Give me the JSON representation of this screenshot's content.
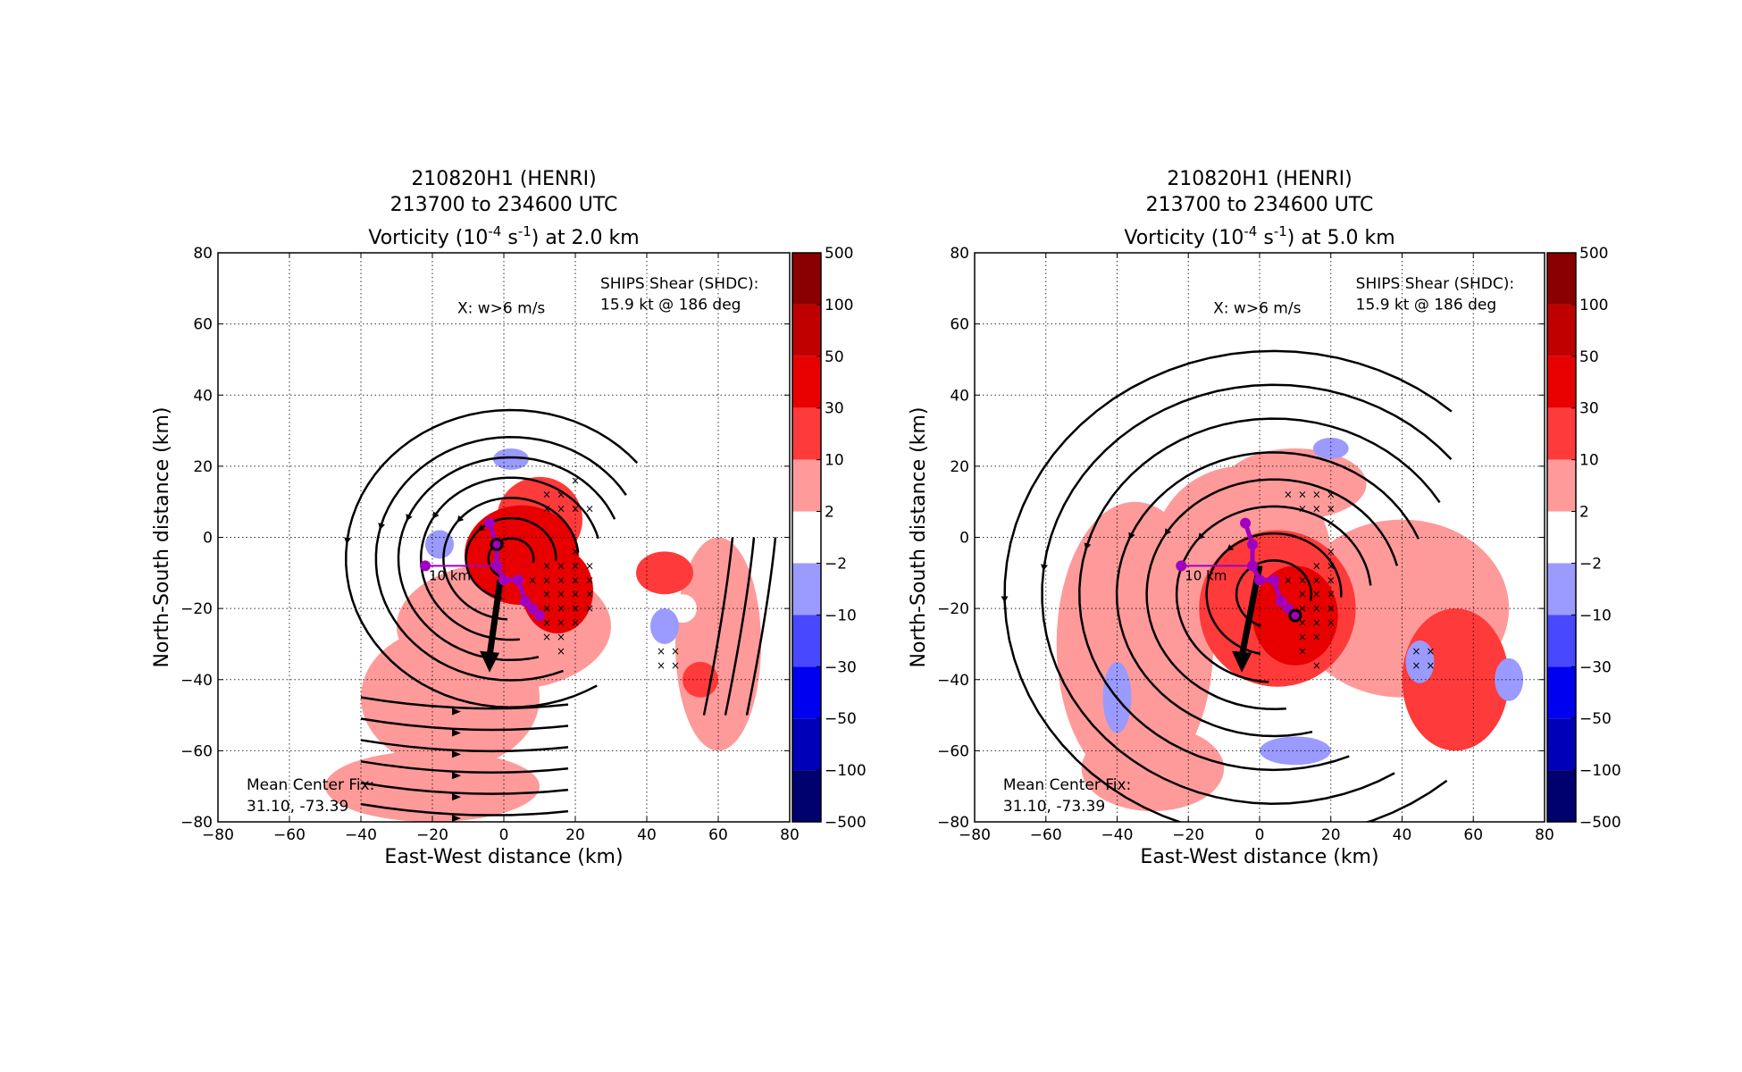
{
  "panels": [
    {
      "title_line1": "210820H1 (HENRI)",
      "title_line2": "213700 to 234600 UTC",
      "title_line3_prefix": "Vorticity (10",
      "title_line3_exp1": "-4",
      "title_line3_mid": " s",
      "title_line3_exp2": "-1",
      "title_line3_suffix": ") at 2.0 km",
      "xlabel": "East-West distance (km)",
      "ylabel": "North-South distance (km)",
      "xticks": [
        "−80",
        "−60",
        "−40",
        "−20",
        "0",
        "20",
        "40",
        "60",
        "80"
      ],
      "yticks": [
        "80",
        "60",
        "40",
        "20",
        "0",
        "−20",
        "−40",
        "−60",
        "−80"
      ],
      "legend_x": "X: w>6 m/s",
      "shear_line1": "SHIPS Shear (SHDC):",
      "shear_line2": "15.9 kt @ 186 deg",
      "center_fix_label": "Mean Center Fix:",
      "center_fix_value": "31.10, -73.39",
      "scale_label": "10 km",
      "colorbar_labels": [
        "500",
        "100",
        "50",
        "30",
        "10",
        "2",
        "−2",
        "−10",
        "−30",
        "−50",
        "−100",
        "−500"
      ]
    },
    {
      "title_line1": "210820H1 (HENRI)",
      "title_line2": "213700 to 234600 UTC",
      "title_line3_prefix": "Vorticity (10",
      "title_line3_exp1": "-4",
      "title_line3_mid": " s",
      "title_line3_exp2": "-1",
      "title_line3_suffix": ") at 5.0 km",
      "xlabel": "East-West distance (km)",
      "ylabel": "North-South distance (km)",
      "xticks": [
        "−80",
        "−60",
        "−40",
        "−20",
        "0",
        "20",
        "40",
        "60",
        "80"
      ],
      "yticks": [
        "80",
        "60",
        "40",
        "20",
        "0",
        "−20",
        "−40",
        "−60",
        "−80"
      ],
      "legend_x": "X: w>6 m/s",
      "shear_line1": "SHIPS Shear (SHDC):",
      "shear_line2": "15.9 kt @ 186 deg",
      "center_fix_label": "Mean Center Fix:",
      "center_fix_value": "31.10, -73.39",
      "scale_label": "10 km",
      "colorbar_labels": [
        "500",
        "100",
        "50",
        "30",
        "10",
        "2",
        "−2",
        "−10",
        "−30",
        "−50",
        "−100",
        "−500"
      ]
    }
  ],
  "chart_data": [
    {
      "type": "heatmap",
      "title": "210820H1 (HENRI) 213700 to 234600 UTC Vorticity (10^-4 s^-1) at 2.0 km",
      "xlabel": "East-West distance (km)",
      "ylabel": "North-South distance (km)",
      "xlim": [
        -80,
        80
      ],
      "ylim": [
        -80,
        80
      ],
      "grid": true,
      "colorbar": {
        "levels": [
          -500,
          -100,
          -50,
          -30,
          -10,
          -2,
          2,
          10,
          30,
          50,
          100,
          500
        ],
        "colors": [
          "#00006e",
          "#0000b8",
          "#0000f0",
          "#4848ff",
          "#9a9aff",
          "#ffffff",
          "#ff9a9a",
          "#ff3a3a",
          "#e80000",
          "#c00000",
          "#8a0000"
        ]
      },
      "vorticity_blobs": [
        {
          "x": 5,
          "y": -5,
          "rx": 16,
          "ry": 14,
          "level": 30
        },
        {
          "x": 15,
          "y": -15,
          "rx": 10,
          "ry": 12,
          "level": 30
        },
        {
          "x": 10,
          "y": 5,
          "rx": 12,
          "ry": 12,
          "level": 10
        },
        {
          "x": 0,
          "y": -25,
          "rx": 30,
          "ry": 18,
          "level": 2
        },
        {
          "x": -15,
          "y": -45,
          "rx": 25,
          "ry": 20,
          "level": 2
        },
        {
          "x": -20,
          "y": -70,
          "rx": 30,
          "ry": 10,
          "level": 2
        },
        {
          "x": 60,
          "y": -30,
          "rx": 12,
          "ry": 30,
          "level": 2
        },
        {
          "x": 45,
          "y": -10,
          "rx": 8,
          "ry": 6,
          "level": 10
        },
        {
          "x": 55,
          "y": -40,
          "rx": 5,
          "ry": 5,
          "level": 10
        },
        {
          "x": 45,
          "y": -25,
          "rx": 4,
          "ry": 5,
          "level": -10
        },
        {
          "x": 2,
          "y": 22,
          "rx": 5,
          "ry": 3,
          "level": -10
        },
        {
          "x": -18,
          "y": -2,
          "rx": 4,
          "ry": 4,
          "level": -10
        },
        {
          "x": 50,
          "y": -20,
          "rx": 4,
          "ry": 4,
          "level": -2
        }
      ],
      "updrafts_w_gt_6": [
        [
          12,
          12
        ],
        [
          16,
          12
        ],
        [
          20,
          16
        ],
        [
          12,
          8
        ],
        [
          16,
          8
        ],
        [
          20,
          8
        ],
        [
          24,
          8
        ],
        [
          20,
          -4
        ],
        [
          12,
          -8
        ],
        [
          16,
          -8
        ],
        [
          20,
          -8
        ],
        [
          24,
          -8
        ],
        [
          8,
          -12
        ],
        [
          12,
          -12
        ],
        [
          16,
          -12
        ],
        [
          20,
          -12
        ],
        [
          24,
          -12
        ],
        [
          12,
          -16
        ],
        [
          16,
          -16
        ],
        [
          20,
          -16
        ],
        [
          24,
          -16
        ],
        [
          12,
          -20
        ],
        [
          16,
          -20
        ],
        [
          20,
          -20
        ],
        [
          24,
          -20
        ],
        [
          12,
          -24
        ],
        [
          16,
          -24
        ],
        [
          20,
          -24
        ],
        [
          12,
          -28
        ],
        [
          16,
          -28
        ],
        [
          16,
          -32
        ],
        [
          44,
          -32
        ],
        [
          48,
          -32
        ],
        [
          44,
          -36
        ],
        [
          48,
          -36
        ]
      ],
      "center_fixes": [
        [
          -4,
          4
        ],
        [
          -2,
          -2
        ],
        [
          -2,
          -8
        ],
        [
          0,
          -12
        ],
        [
          4,
          -12
        ],
        [
          6,
          -18
        ],
        [
          8,
          -20
        ],
        [
          10,
          -22
        ],
        [
          -22,
          -8
        ]
      ],
      "shear_vector": {
        "from": [
          -1,
          -12
        ],
        "to": [
          -4,
          -38
        ]
      },
      "shear_kt": 15.9,
      "shear_deg": 186,
      "mean_center_fix": [
        31.1,
        -73.39
      ]
    },
    {
      "type": "heatmap",
      "title": "210820H1 (HENRI) 213700 to 234600 UTC Vorticity (10^-4 s^-1) at 5.0 km",
      "xlabel": "East-West distance (km)",
      "ylabel": "North-South distance (km)",
      "xlim": [
        -80,
        80
      ],
      "ylim": [
        -80,
        80
      ],
      "grid": true,
      "colorbar": {
        "levels": [
          -500,
          -100,
          -50,
          -30,
          -10,
          -2,
          2,
          10,
          30,
          50,
          100,
          500
        ],
        "colors": [
          "#00006e",
          "#0000b8",
          "#0000f0",
          "#4848ff",
          "#9a9aff",
          "#ffffff",
          "#ff9a9a",
          "#ff3a3a",
          "#e80000",
          "#c00000",
          "#8a0000"
        ]
      },
      "vorticity_blobs": [
        {
          "x": 5,
          "y": -20,
          "rx": 22,
          "ry": 22,
          "level": 10
        },
        {
          "x": 10,
          "y": -22,
          "rx": 12,
          "ry": 14,
          "level": 30
        },
        {
          "x": -5,
          "y": -5,
          "rx": 25,
          "ry": 25,
          "level": 2
        },
        {
          "x": -35,
          "y": -30,
          "rx": 22,
          "ry": 40,
          "level": 2
        },
        {
          "x": 40,
          "y": -20,
          "rx": 30,
          "ry": 25,
          "level": 2
        },
        {
          "x": 55,
          "y": -40,
          "rx": 15,
          "ry": 20,
          "level": 10
        },
        {
          "x": 10,
          "y": 15,
          "rx": 20,
          "ry": 10,
          "level": 2
        },
        {
          "x": -30,
          "y": -65,
          "rx": 20,
          "ry": 12,
          "level": 2
        },
        {
          "x": 45,
          "y": -35,
          "rx": 4,
          "ry": 6,
          "level": -10
        },
        {
          "x": 20,
          "y": 25,
          "rx": 5,
          "ry": 3,
          "level": -10
        },
        {
          "x": -40,
          "y": -45,
          "rx": 4,
          "ry": 10,
          "level": -10
        },
        {
          "x": 10,
          "y": -60,
          "rx": 10,
          "ry": 4,
          "level": -10
        },
        {
          "x": 70,
          "y": -40,
          "rx": 4,
          "ry": 6,
          "level": -10
        }
      ],
      "updrafts_w_gt_6": [
        [
          8,
          12
        ],
        [
          12,
          12
        ],
        [
          16,
          12
        ],
        [
          20,
          12
        ],
        [
          12,
          8
        ],
        [
          16,
          8
        ],
        [
          20,
          8
        ],
        [
          20,
          4
        ],
        [
          20,
          -4
        ],
        [
          16,
          -8
        ],
        [
          20,
          -8
        ],
        [
          8,
          -12
        ],
        [
          12,
          -12
        ],
        [
          16,
          -12
        ],
        [
          20,
          -12
        ],
        [
          12,
          -16
        ],
        [
          16,
          -16
        ],
        [
          20,
          -16
        ],
        [
          12,
          -20
        ],
        [
          16,
          -20
        ],
        [
          20,
          -20
        ],
        [
          12,
          -24
        ],
        [
          16,
          -24
        ],
        [
          20,
          -24
        ],
        [
          12,
          -28
        ],
        [
          16,
          -28
        ],
        [
          12,
          -32
        ],
        [
          16,
          -36
        ],
        [
          44,
          -32
        ],
        [
          48,
          -32
        ],
        [
          44,
          -36
        ],
        [
          48,
          -36
        ]
      ],
      "center_fixes": [
        [
          -4,
          4
        ],
        [
          -2,
          -2
        ],
        [
          -2,
          -8
        ],
        [
          0,
          -12
        ],
        [
          4,
          -12
        ],
        [
          6,
          -18
        ],
        [
          8,
          -20
        ],
        [
          10,
          -22
        ],
        [
          -22,
          -8
        ]
      ],
      "shear_vector": {
        "from": [
          0,
          -8
        ],
        "to": [
          -5,
          -38
        ]
      },
      "shear_kt": 15.9,
      "shear_deg": 186,
      "mean_center_fix": [
        31.1,
        -73.39
      ]
    }
  ],
  "colors": {
    "pos_2_10": "#ff9a9a",
    "pos_10_30": "#ff3a3a",
    "pos_30_50": "#e80000",
    "neg_2_10": "#9a9aff",
    "neg_10_30": "#4848ff",
    "center_fix": "#a000c0"
  }
}
